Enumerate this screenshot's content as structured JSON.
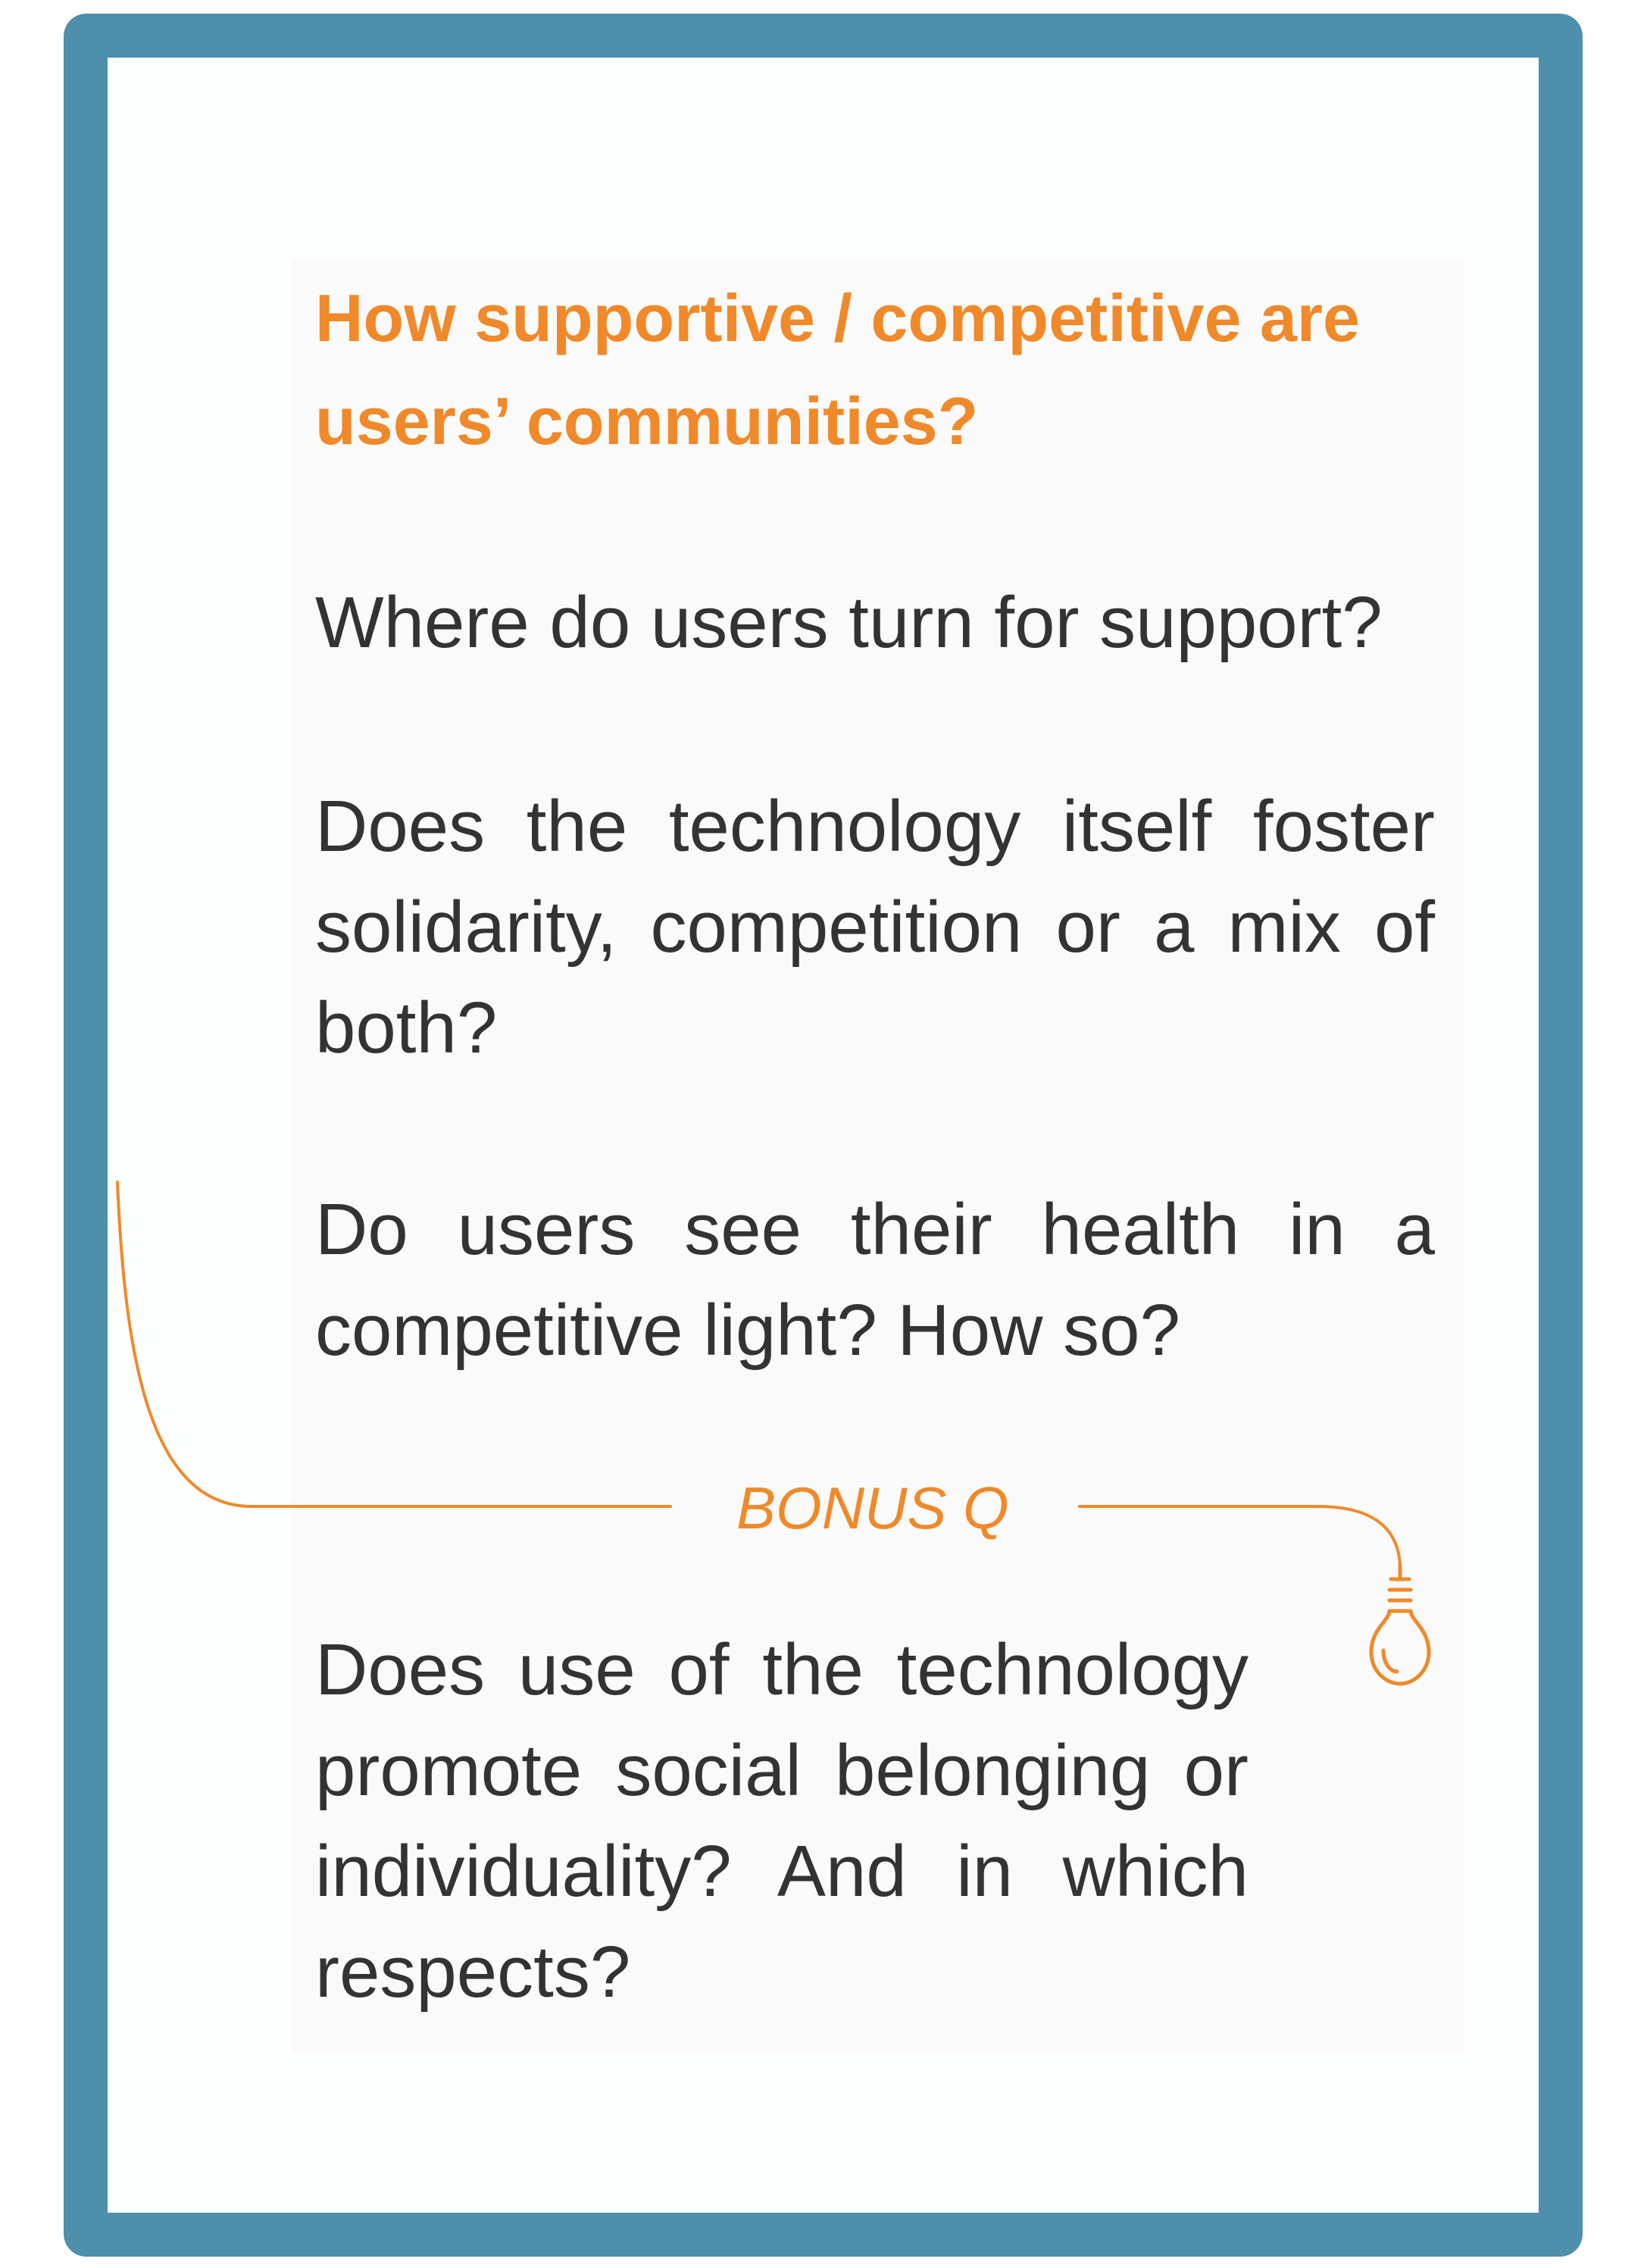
{
  "card": {
    "heading": "How supportive / competitive are users’ communities?",
    "questions": [
      "Where do users turn for support?",
      "Does the technology itself foster solidarity, competition or a mix of both?",
      "Do users see their health in a competitive light? How so?"
    ],
    "bonus": {
      "label": "BONUS Q",
      "icon": "lightbulb-icon",
      "question": "Does use of the technology promote social belonging or individuality? And in which respects?"
    }
  },
  "colors": {
    "frame": "#4e8fab",
    "accent": "#f0892a",
    "text": "#333333",
    "panel": "#f9faf9"
  }
}
